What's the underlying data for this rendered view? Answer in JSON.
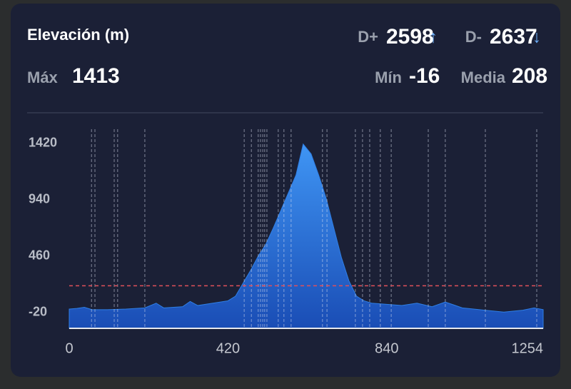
{
  "header": {
    "title": "Elevación (m)",
    "d_plus": {
      "label": "D+",
      "value": 2598,
      "arrow": "↑"
    },
    "d_minus": {
      "label": "D-",
      "value": 2637,
      "arrow": "↓"
    },
    "max": {
      "label": "Máx",
      "value": 1413
    },
    "min": {
      "label": "Mín",
      "value": -16
    },
    "mean": {
      "label": "Media",
      "value": 208
    }
  },
  "chart_data": {
    "type": "area",
    "x": [
      0,
      20,
      40,
      60,
      100,
      150,
      200,
      230,
      250,
      300,
      320,
      340,
      380,
      420,
      440,
      460,
      480,
      500,
      520,
      540,
      560,
      580,
      600,
      619,
      640,
      660,
      680,
      700,
      720,
      740,
      760,
      780,
      800,
      840,
      880,
      920,
      960,
      995,
      1040,
      1100,
      1150,
      1200,
      1230,
      1254
    ],
    "series": [
      {
        "color": "#2f7fe6",
        "values": [
          10,
          15,
          25,
          5,
          5,
          10,
          20,
          60,
          20,
          30,
          75,
          40,
          60,
          80,
          120,
          230,
          340,
          460,
          560,
          700,
          850,
          1000,
          1150,
          1413,
          1330,
          1150,
          950,
          700,
          450,
          250,
          120,
          80,
          60,
          50,
          40,
          60,
          30,
          70,
          20,
          0,
          -16,
          0,
          20,
          5
        ]
      }
    ],
    "markers_x": [
      59,
      68,
      119,
      128,
      200,
      463,
      482,
      500,
      506,
      512,
      517,
      523,
      553,
      568,
      587,
      670,
      682,
      757,
      776,
      795,
      823,
      852,
      950,
      995,
      1101,
      1237
    ],
    "xlim": [
      0,
      1254
    ],
    "xticks": [
      0,
      420,
      840,
      1254
    ],
    "ylim": [
      -154,
      1540
    ],
    "yticks": [
      1420,
      940,
      460,
      -20
    ],
    "mean_line_color": "#e0505a"
  }
}
